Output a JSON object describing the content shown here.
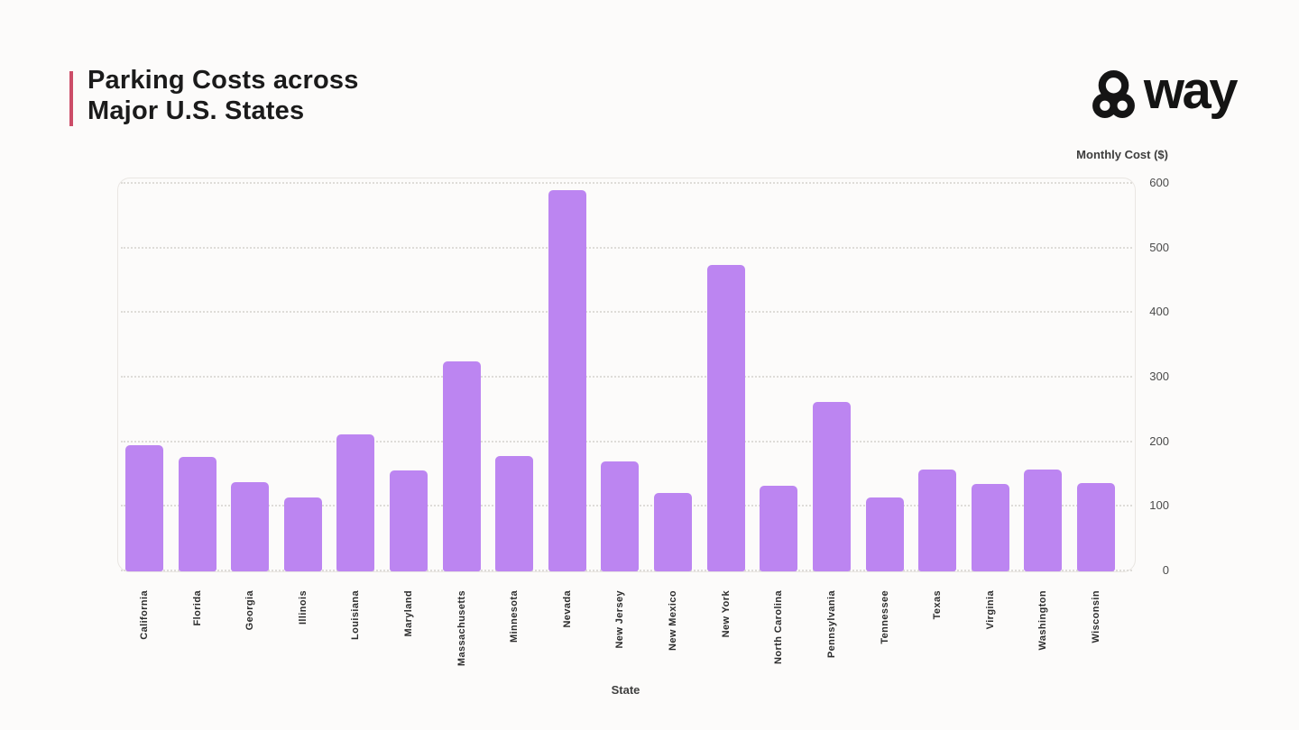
{
  "header": {
    "title_lines": [
      "Parking Costs across",
      "Major U.S. States"
    ],
    "brand": "way",
    "accent_color": "#cc4d68"
  },
  "chart_data": {
    "type": "bar",
    "title": "Parking Costs across Major U.S. States",
    "xlabel": "State",
    "ylabel": "Monthly Cost ($)",
    "ylim": [
      0,
      600
    ],
    "yticks": [
      0,
      100,
      200,
      300,
      400,
      500,
      600
    ],
    "categories": [
      "California",
      "Florida",
      "Georgia",
      "Illinois",
      "Louisiana",
      "Maryland",
      "Massachusetts",
      "Minnesota",
      "Nevada",
      "New Jersey",
      "New Mexico",
      "New York",
      "North Carolina",
      "Pennsylvania",
      "Tennessee",
      "Texas",
      "Virginia",
      "Washington",
      "Wisconsin"
    ],
    "values": [
      195,
      177,
      138,
      115,
      212,
      156,
      325,
      178,
      590,
      170,
      121,
      475,
      133,
      262,
      114,
      158,
      136,
      158,
      137
    ],
    "bar_color": "#bc85f1",
    "grid": "horizontal-dotted",
    "legend_position": "none",
    "ytick_side": "right"
  }
}
